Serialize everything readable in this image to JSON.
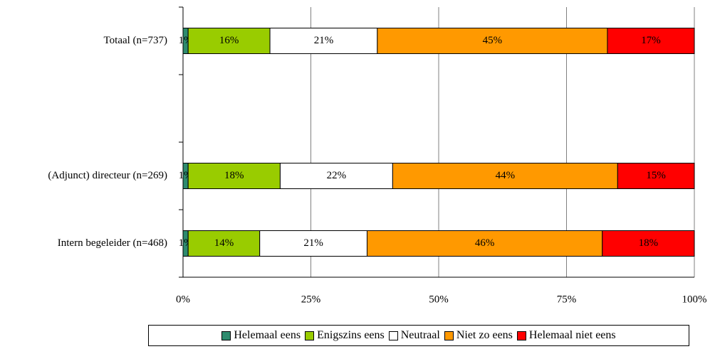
{
  "chart_data": {
    "type": "stacked-bar-horizontal",
    "categories": [
      "Totaal (n=737)",
      null,
      "(Adjunct) directeur (n=269)",
      "Intern begeleider (n=468)"
    ],
    "series": [
      {
        "name": "Helemaal eens",
        "color": "#2e8b6e",
        "values": [
          1,
          null,
          1,
          1
        ],
        "value_labels": [
          "1%",
          null,
          "1%",
          "1%"
        ]
      },
      {
        "name": "Enigszins eens",
        "color": "#99cc00",
        "values": [
          16,
          null,
          18,
          14
        ],
        "value_labels": [
          "16%",
          null,
          "18%",
          "14%"
        ]
      },
      {
        "name": "Neutraal",
        "color": "#ffffff",
        "values": [
          21,
          null,
          22,
          21
        ],
        "value_labels": [
          "21%",
          null,
          "22%",
          "21%"
        ]
      },
      {
        "name": "Niet zo eens",
        "color": "#ff9900",
        "values": [
          45,
          null,
          44,
          46
        ],
        "value_labels": [
          "45%",
          null,
          "44%",
          "46%"
        ]
      },
      {
        "name": "Helemaal niet eens",
        "color": "#ff0000",
        "values": [
          17,
          null,
          15,
          18
        ],
        "value_labels": [
          "17%",
          null,
          "15%",
          "18%"
        ]
      }
    ],
    "xlim": [
      0,
      100
    ],
    "xticks": [
      {
        "value": 0,
        "label": "0%"
      },
      {
        "value": 25,
        "label": "25%"
      },
      {
        "value": 50,
        "label": "50%"
      },
      {
        "value": 75,
        "label": "75%"
      },
      {
        "value": 100,
        "label": "100%"
      }
    ],
    "grid": true,
    "legend": "bottom"
  }
}
